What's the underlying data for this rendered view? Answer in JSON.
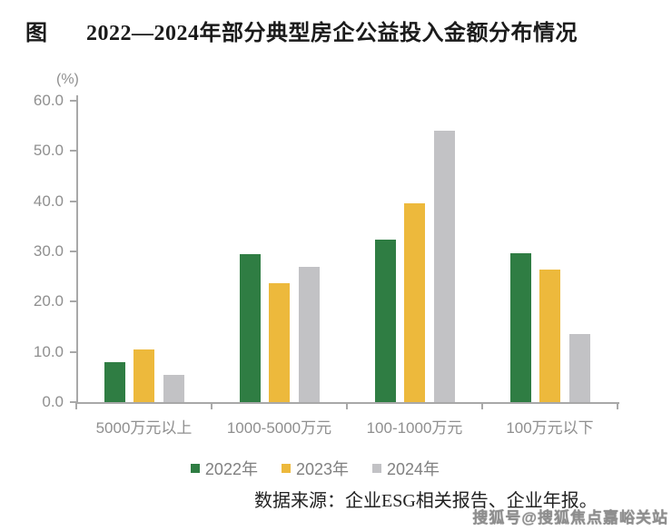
{
  "page": {
    "figure_label": "图",
    "title": "2022—2024年部分典型房企公益投入金额分布情况",
    "unit_label": "(%)",
    "source_text": "数据来源：企业ESG相关报告、企业年报。",
    "watermark_text": "搜狐号@搜狐焦点嘉峪关站"
  },
  "colors": {
    "series_2022": "#2f7d43",
    "series_2023": "#edb93c",
    "series_2024": "#c2c2c5",
    "axis": "#a8a8a8",
    "tick_label": "#8f8f8f",
    "title_text": "#1b1b1b"
  },
  "chart_data": {
    "type": "bar",
    "title": "2022—2024年部分典型房企公益投入金额分布情况",
    "ylabel": "(%)",
    "xlabel": "",
    "categories": [
      "5000万元以上",
      "1000-5000万元",
      "100-1000万元",
      "100万元以下"
    ],
    "series": [
      {
        "name": "2022年",
        "color": "#2f7d43",
        "values": [
          8.0,
          29.5,
          32.4,
          29.6
        ]
      },
      {
        "name": "2023年",
        "color": "#edb93c",
        "values": [
          10.4,
          23.6,
          39.5,
          26.3
        ]
      },
      {
        "name": "2024年",
        "color": "#c2c2c5",
        "values": [
          5.4,
          27.0,
          54.0,
          13.5
        ]
      }
    ],
    "ylim": [
      0,
      60
    ],
    "ytick_values": [
      0,
      10,
      20,
      30,
      40,
      50,
      60
    ],
    "ytick_labels": [
      "0.0",
      "10.0",
      "20.0",
      "30.0",
      "40.0",
      "50.0",
      "60.0"
    ],
    "grid": false,
    "legend_position": "bottom"
  }
}
